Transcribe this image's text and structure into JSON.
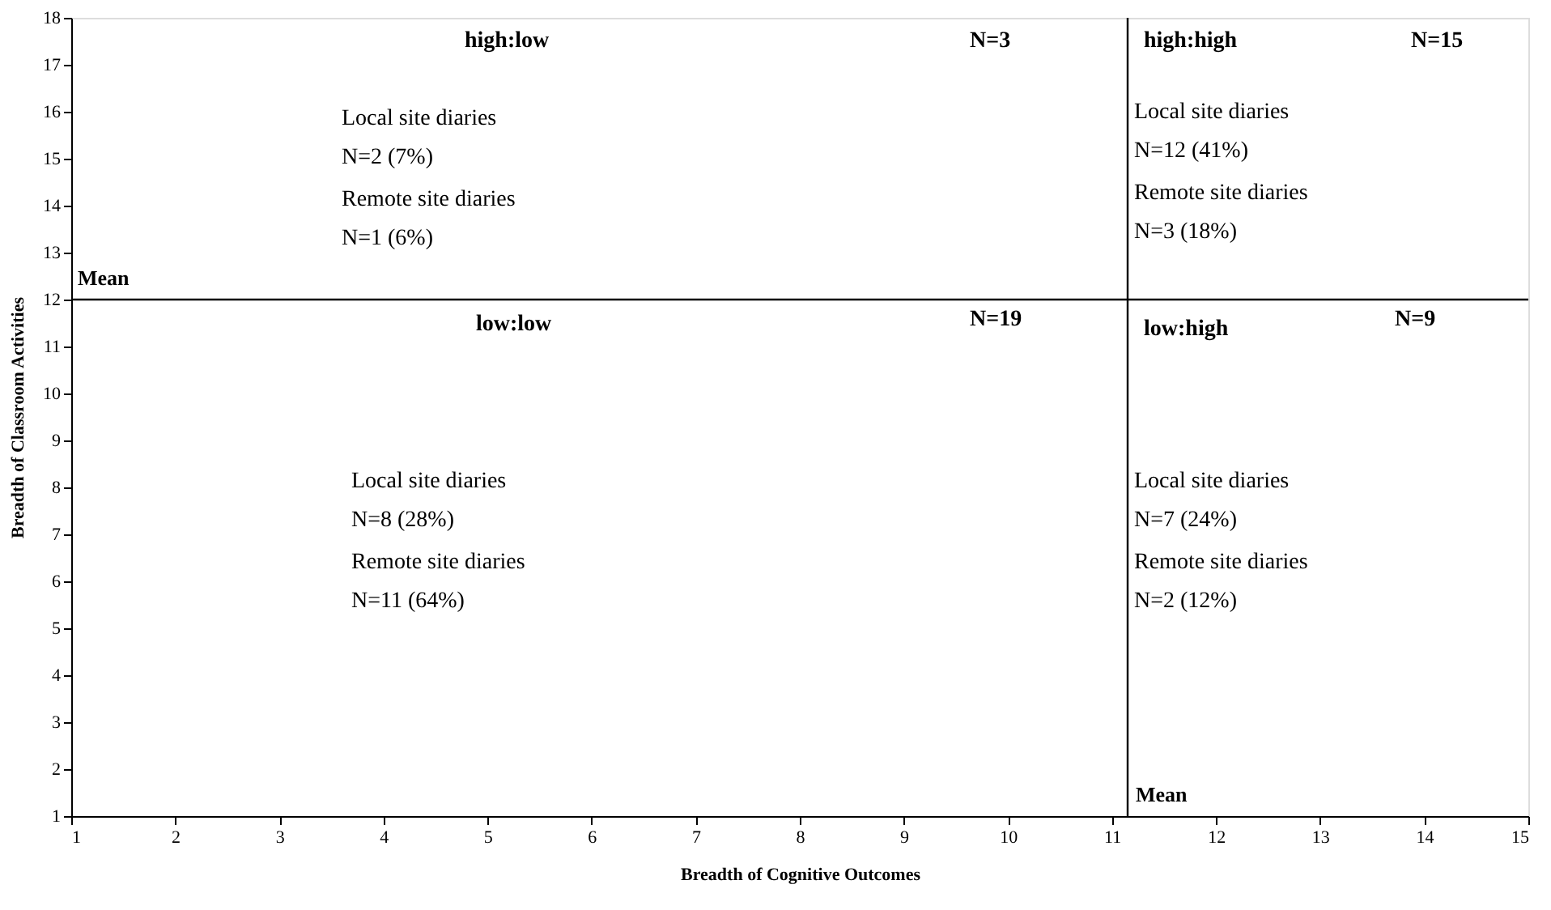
{
  "chart_data": {
    "type": "scatter",
    "grid": false,
    "xlabel": "Breadth of Cognitive Outcomes",
    "ylabel": "Breadth of Classroom Activities",
    "xlim": [
      1,
      15
    ],
    "ylim": [
      1,
      18
    ],
    "xticks": [
      1,
      2,
      3,
      4,
      5,
      6,
      7,
      8,
      9,
      10,
      11,
      12,
      13,
      14,
      15
    ],
    "yticks": [
      1,
      2,
      3,
      4,
      5,
      6,
      7,
      8,
      9,
      10,
      11,
      12,
      13,
      14,
      15,
      16,
      17,
      18
    ],
    "ref_lines": [
      {
        "axis": "x",
        "value": 11.15,
        "label": "Mean"
      },
      {
        "axis": "y",
        "value": 12,
        "label": "Mean"
      }
    ],
    "annotations": [
      "high:low",
      "N=3",
      "Local site diaries",
      "N=2 (7%)",
      "Remote site diaries",
      "N=1 (6%)",
      "high:high",
      "N=15",
      "Local site diaries",
      "N=12 (41%)",
      "Remote site diaries",
      "N=3 (18%)",
      "low:low",
      "N=19",
      "Local site diaries",
      "N=8 (28%)",
      "Remote site diaries",
      "N=11 (64%)",
      "low:high",
      "N=9",
      "Local site diaries",
      "N=7 (24%)",
      "Remote site diaries",
      "N=2 (12%)"
    ]
  }
}
